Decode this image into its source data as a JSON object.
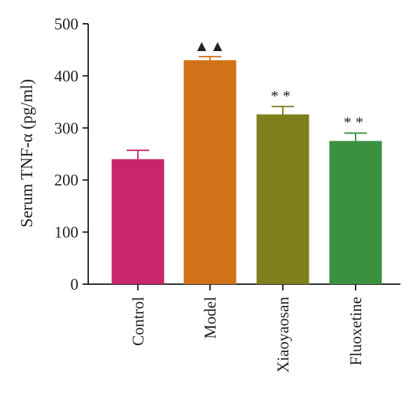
{
  "chart_data": {
    "type": "bar",
    "title": "",
    "xlabel": "",
    "ylabel": "Serum TNF-α (pg/ml)",
    "categories": [
      "Control",
      "Model",
      "Xiaoyaosan",
      "Fluoxetine"
    ],
    "series": [
      {
        "values": [
          240,
          430,
          326,
          275
        ],
        "errors": [
          17,
          7,
          15,
          15
        ]
      }
    ],
    "annotations": [
      "",
      "▲▲",
      "**",
      "**"
    ],
    "colors": [
      "#c8266a",
      "#d17219",
      "#807f1e",
      "#3b9140"
    ],
    "ylim": [
      0,
      500
    ],
    "yticks": [
      0,
      100,
      200,
      300,
      400,
      500
    ],
    "grid": false,
    "legend": "none"
  }
}
